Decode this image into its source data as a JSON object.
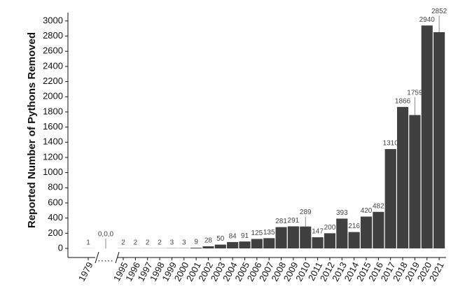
{
  "chart_data": {
    "type": "bar",
    "y_label": "Reported Number of Pythons Removed",
    "categories": [
      "1979",
      ".....",
      "1995",
      "1996",
      "1997",
      "1998",
      "1999",
      "2000",
      "2001",
      "2002",
      "2003",
      "2004",
      "2005",
      "2006",
      "2007",
      "2008",
      "2009",
      "2010",
      "2011",
      "2012",
      "2013",
      "2014",
      "2015",
      "2016",
      "2017",
      "2018",
      "2019",
      "2020",
      "2021"
    ],
    "values": [
      1,
      0,
      2,
      2,
      2,
      2,
      3,
      3,
      9,
      28,
      50,
      84,
      91,
      125,
      135,
      281,
      291,
      289,
      147,
      200,
      393,
      216,
      420,
      482,
      1310,
      1866,
      1759,
      2940,
      2852
    ],
    "value_labels": [
      "1",
      "0,0,0",
      "2",
      "2",
      "2",
      "2",
      "3",
      "3",
      "9",
      "28",
      "50",
      "84",
      "91",
      "125",
      "135",
      "281",
      "291",
      "289",
      "147",
      "200",
      "393",
      "216",
      "420",
      "482",
      "1310",
      "1866",
      "1759",
      "2940",
      "2852"
    ],
    "color": "#404040",
    "ylim": [
      -120,
      3110
    ],
    "yticks": [
      0,
      200,
      400,
      600,
      800,
      1000,
      1200,
      1400,
      1600,
      1800,
      2000,
      2200,
      2400,
      2600,
      2800,
      3000
    ]
  }
}
